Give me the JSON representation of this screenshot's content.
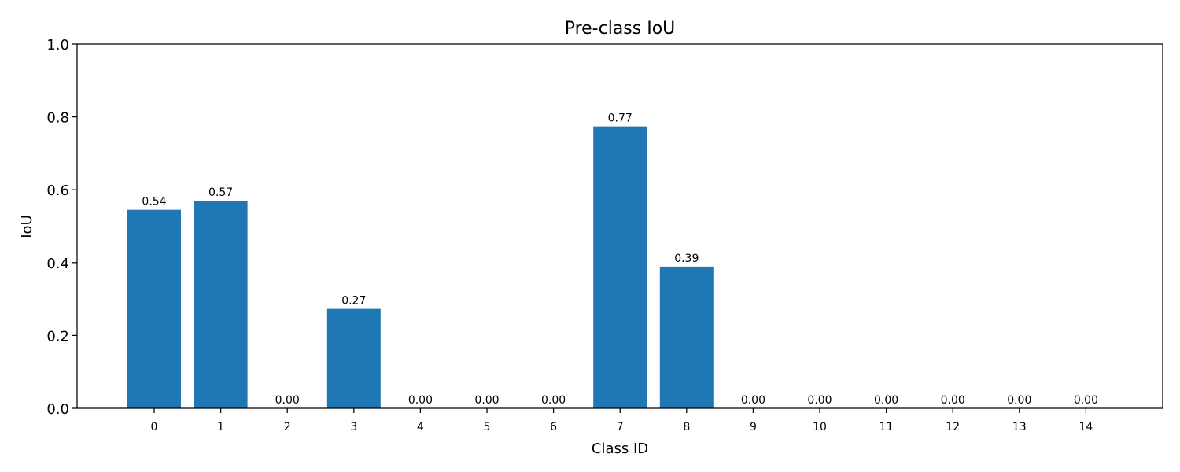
{
  "chart_data": {
    "type": "bar",
    "title": "Pre-class IoU",
    "xlabel": "Class ID",
    "ylabel": "IoU",
    "ylim": [
      0,
      1.0
    ],
    "yticks": [
      "0.0",
      "0.2",
      "0.4",
      "0.6",
      "0.8",
      "1.0"
    ],
    "categories": [
      "0",
      "1",
      "2",
      "3",
      "4",
      "5",
      "6",
      "7",
      "8",
      "9",
      "10",
      "11",
      "12",
      "13",
      "14"
    ],
    "values": [
      0.545,
      0.57,
      0.0,
      0.273,
      0.0,
      0.0,
      0.0,
      0.774,
      0.389,
      0.0,
      0.0,
      0.0,
      0.0,
      0.0,
      0.0
    ],
    "value_labels": [
      "0.54",
      "0.57",
      "0.00",
      "0.27",
      "0.00",
      "0.00",
      "0.00",
      "0.77",
      "0.39",
      "0.00",
      "0.00",
      "0.00",
      "0.00",
      "0.00",
      "0.00"
    ],
    "bar_color": "#1f77b4",
    "grid": false,
    "legend": "none"
  }
}
